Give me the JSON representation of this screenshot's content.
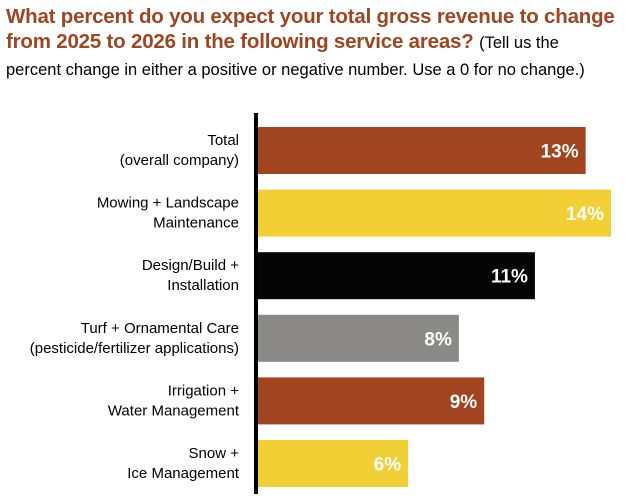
{
  "title": "What percent do you expect your total gross revenue to change from 2025 to 2026 in the following service areas?",
  "subtitle": "(Tell us the percent change in either a positive or negative number. Use a 0 for no change.)",
  "colors": {
    "title": "#9e4521",
    "rust": "#a0451f",
    "yellow": "#f2cf35",
    "black": "#050505",
    "gray": "#8c8a88",
    "axis": "#000000"
  },
  "chart_data": {
    "type": "bar",
    "orientation": "horizontal",
    "title": "What percent do you expect your total gross revenue to change from 2025 to 2026 in the following service areas?",
    "subtitle": "(Tell us the percent change in either a positive or negative number. Use a 0 for no change.)",
    "categories": [
      [
        "Total",
        "(overall company)"
      ],
      [
        "Mowing + Landscape",
        "Maintenance"
      ],
      [
        "Design/Build +",
        "Installation"
      ],
      [
        "Turf + Ornamental Care",
        "(pesticide/fertilizer applications)"
      ],
      [
        "Irrigation +",
        "Water Management"
      ],
      [
        "Snow +",
        "Ice Management"
      ]
    ],
    "values": [
      13,
      14,
      11,
      8,
      9,
      6
    ],
    "value_labels": [
      "13%",
      "14%",
      "11%",
      "8%",
      "9%",
      "6%"
    ],
    "bar_colors": [
      "#a0451f",
      "#f2cf35",
      "#050505",
      "#8c8a88",
      "#a0451f",
      "#f2cf35"
    ],
    "label_colors": [
      "#ffffff",
      "#000000",
      "#ffffff",
      "#ffffff",
      "#ffffff",
      "#ffffff"
    ],
    "xlim": [
      0,
      14
    ],
    "grid": false,
    "legend": "none"
  }
}
